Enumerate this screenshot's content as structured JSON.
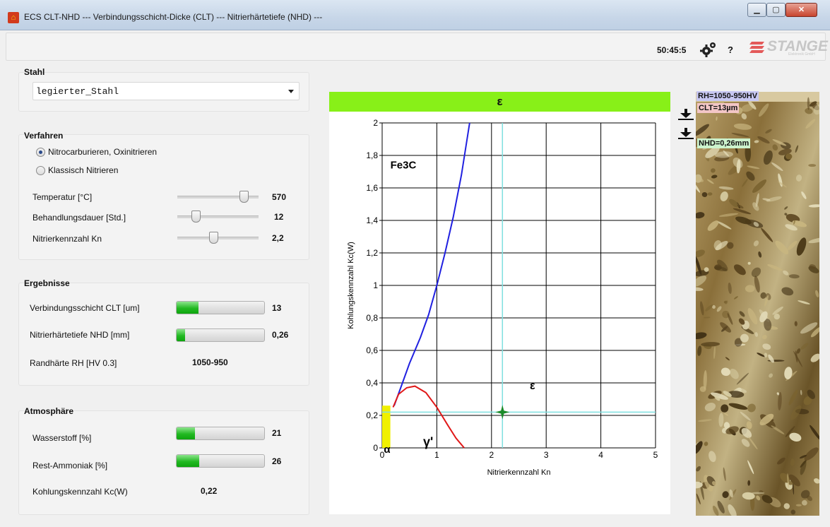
{
  "window": {
    "title": "ECS CLT-NHD  ---  Verbindungsschicht-Dicke (CLT)  ---  Nitrierhärtetiefe (NHD)  ---",
    "app_icon": "factory-icon"
  },
  "toolbar": {
    "clock": "50:45:5",
    "help_label": "?",
    "brand": "STANGE",
    "brand_sub": "Elektronik GmbH"
  },
  "stahl": {
    "title": "Stahl",
    "selected": "legierter_Stahl"
  },
  "verfahren": {
    "title": "Verfahren",
    "options": [
      {
        "label": "Nitrocarburieren, Oxinitrieren",
        "selected": true
      },
      {
        "label": "Klassisch Nitrieren",
        "selected": false
      }
    ],
    "params": [
      {
        "label": "Temperatur [°C]",
        "value": "570",
        "position": 0.86
      },
      {
        "label": "Behandlungsdauer [Std.]",
        "value": "12",
        "position": 0.2
      },
      {
        "label": "Nitrierkennzahl Kn",
        "value": "2,2",
        "position": 0.44
      }
    ]
  },
  "ergebnisse": {
    "title": "Ergebnisse",
    "clt": {
      "label": "Verbindungsschicht CLT [um]",
      "value": "13",
      "fill": 0.25
    },
    "nhd": {
      "label": "Nitrierhärtetiefe NHD [mm]",
      "value": "0,26",
      "fill": 0.1
    },
    "rh": {
      "label": "Randhärte RH [HV 0.3]",
      "value": "1050-950"
    }
  },
  "atmosphaere": {
    "title": "Atmosphäre",
    "wasserstoff": {
      "label": "Wasserstoff [%]",
      "value": "21",
      "fill": 0.21
    },
    "ammoniak": {
      "label": "Rest-Ammoniak [%]",
      "value": "26",
      "fill": 0.26
    },
    "kc": {
      "label": "Kohlungskennzahl Kc(W)",
      "value": "0,22"
    }
  },
  "phase_banner": "ε",
  "chart_data": {
    "type": "line",
    "xlabel": "Nitrierkennzahl Kn",
    "ylabel": "Kohlungskennzahl Kc(W)",
    "xlim": [
      0,
      5
    ],
    "ylim": [
      0,
      2
    ],
    "x_ticks": [
      "0",
      "1",
      "2",
      "3",
      "4",
      "5"
    ],
    "y_ticks": [
      "0",
      "0,2",
      "0,4",
      "0,6",
      "0,8",
      "1",
      "1,2",
      "1,4",
      "1,6",
      "1,8",
      "2"
    ],
    "grid": true,
    "regions": [
      "Fe3C",
      "ε",
      "γ'",
      "α"
    ],
    "series": [
      {
        "color": "#2020e0",
        "x": [
          0.22,
          0.35,
          0.5,
          0.7,
          0.85,
          1.0,
          1.15,
          1.3,
          1.45,
          1.6
        ],
        "y": [
          0.26,
          0.38,
          0.52,
          0.68,
          0.82,
          1.0,
          1.2,
          1.42,
          1.68,
          2.0
        ]
      },
      {
        "color": "#e01818",
        "x": [
          0.2,
          0.3,
          0.45,
          0.6,
          0.8,
          1.0,
          1.2,
          1.35,
          1.5
        ],
        "y": [
          0.25,
          0.33,
          0.37,
          0.38,
          0.34,
          0.25,
          0.14,
          0.06,
          0.0
        ]
      }
    ],
    "operating_point": {
      "x": 2.2,
      "y": 0.22,
      "color": "#1a8a2a"
    },
    "crosshair_color": "#7fe0e0",
    "alpha_region": {
      "x_max": 0.15,
      "y_max": 0.26,
      "color": "#f0f000"
    }
  },
  "micrograph": {
    "rh_tag": "RH=1050-950HV",
    "clt_tag": "CLT=13µm",
    "nhd_tag": "NHD=0,26mm"
  }
}
